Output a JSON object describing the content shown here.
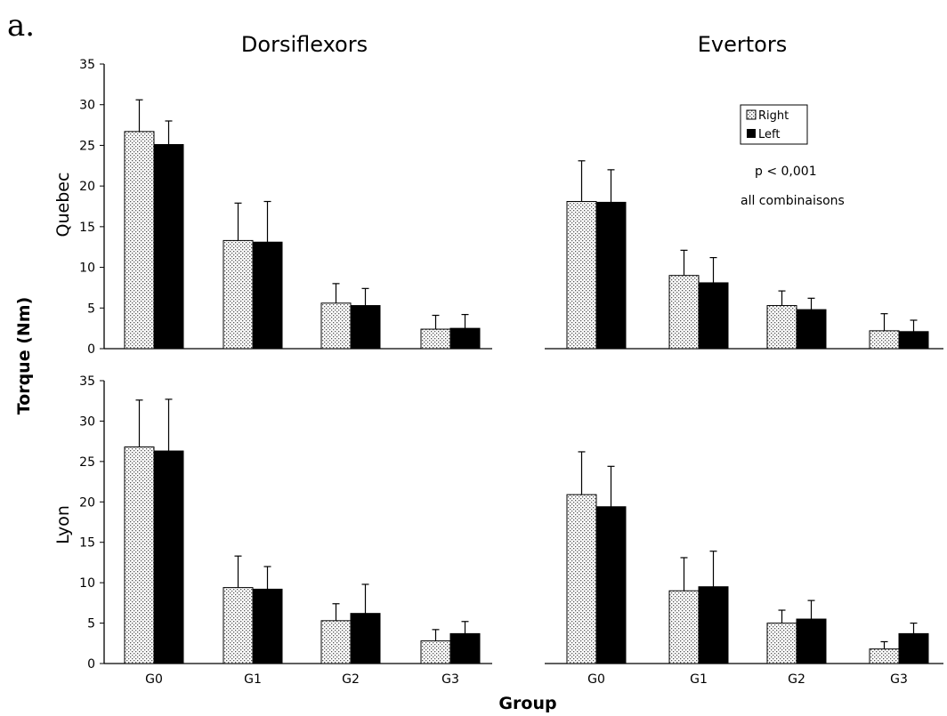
{
  "figure_label": "a.",
  "y_axis_title": "Torque (Nm)",
  "x_axis_title": "Group",
  "legend": {
    "right": "Right",
    "left": "Left"
  },
  "annotation": {
    "line1": "p < 0,001",
    "line2": "all  combinaisons"
  },
  "colors": {
    "left_bar": "#000000",
    "right_bar_pattern": "dotted-white",
    "axis": "#000000"
  },
  "row_labels": {
    "quebec": "Quebec",
    "lyon": "Lyon"
  },
  "column_titles": {
    "dorsiflexors": "Dorsiflexors",
    "evertors": "Evertors"
  },
  "chart_data": [
    {
      "type": "bar",
      "panel": "quebec-dorsiflexors",
      "title": "Dorsiflexors",
      "row": "Quebec",
      "categories": [
        "G0",
        "G1",
        "G2",
        "G3"
      ],
      "series": [
        {
          "name": "Right",
          "values": [
            26.7,
            13.3,
            5.6,
            2.4
          ],
          "errors": [
            3.9,
            4.6,
            2.4,
            1.7
          ]
        },
        {
          "name": "Left",
          "values": [
            25.1,
            13.1,
            5.3,
            2.5
          ],
          "errors": [
            2.9,
            5.0,
            2.1,
            1.7
          ]
        }
      ],
      "ylim": [
        0,
        35
      ],
      "yticks": [
        0,
        5,
        10,
        15,
        20,
        25,
        30,
        35
      ]
    },
    {
      "type": "bar",
      "panel": "quebec-evertors",
      "title": "Evertors",
      "row": "Quebec",
      "categories": [
        "G0",
        "G1",
        "G2",
        "G3"
      ],
      "series": [
        {
          "name": "Right",
          "values": [
            18.1,
            9.0,
            5.3,
            2.2
          ],
          "errors": [
            5.0,
            3.1,
            1.8,
            2.1
          ]
        },
        {
          "name": "Left",
          "values": [
            18.0,
            8.1,
            4.8,
            2.1
          ],
          "errors": [
            4.0,
            3.1,
            1.4,
            1.4
          ]
        }
      ],
      "ylim": [
        0,
        35
      ],
      "yticks": []
    },
    {
      "type": "bar",
      "panel": "lyon-dorsiflexors",
      "title": "",
      "row": "Lyon",
      "categories": [
        "G0",
        "G1",
        "G2",
        "G3"
      ],
      "series": [
        {
          "name": "Right",
          "values": [
            26.8,
            9.4,
            5.3,
            2.8
          ],
          "errors": [
            5.8,
            3.9,
            2.1,
            1.4
          ]
        },
        {
          "name": "Left",
          "values": [
            26.3,
            9.2,
            6.2,
            3.7
          ],
          "errors": [
            6.4,
            2.8,
            3.6,
            1.5
          ]
        }
      ],
      "ylim": [
        0,
        35
      ],
      "yticks": [
        0,
        5,
        10,
        15,
        20,
        25,
        30,
        35
      ]
    },
    {
      "type": "bar",
      "panel": "lyon-evertors",
      "title": "",
      "row": "Lyon",
      "categories": [
        "G0",
        "G1",
        "G2",
        "G3"
      ],
      "series": [
        {
          "name": "Right",
          "values": [
            20.9,
            9.0,
            5.0,
            1.8
          ],
          "errors": [
            5.3,
            4.1,
            1.6,
            0.9
          ]
        },
        {
          "name": "Left",
          "values": [
            19.4,
            9.5,
            5.5,
            3.7
          ],
          "errors": [
            5.0,
            4.4,
            2.3,
            1.3
          ]
        }
      ],
      "ylim": [
        0,
        35
      ],
      "yticks": []
    }
  ]
}
